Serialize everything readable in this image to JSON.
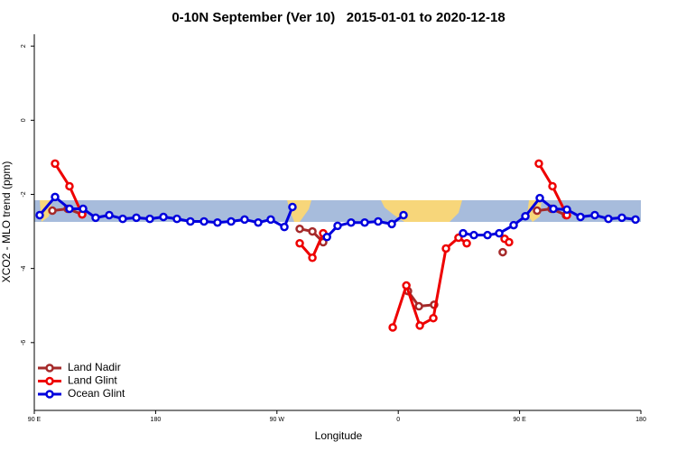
{
  "chart_data": {
    "type": "line",
    "title": "0-10N September (Ver 10)   2015-01-01 to 2020-12-18",
    "xlabel": "Longitude",
    "ylabel": "XCO2 - MLO trend (ppm)",
    "xlim": [
      90,
      540
    ],
    "ylim": [
      -7.83,
      2.32
    ],
    "xticks": [
      {
        "value": 90,
        "label": "90 E"
      },
      180,
      {
        "value": 270,
        "label": "90 W"
      },
      {
        "value": 360,
        "label": "0"
      },
      {
        "value": 450,
        "label": "90 E"
      },
      {
        "value": 540,
        "label": "180"
      }
    ],
    "yticks": [
      2,
      0,
      -2,
      -4,
      -6
    ],
    "legend": "bottom-left",
    "series": [
      {
        "name": "Land Nadir",
        "color": "#a52a2a",
        "x": [
          103.4,
          114.8,
          125.5,
          null,
          286.9,
          296.3,
          304.3,
          null,
          367.2,
          375.3,
          386.6,
          null,
          437.5,
          null,
          463,
          473.7,
          484.4
        ],
        "values": [
          -2.44,
          -2.39,
          -2.54,
          null,
          -2.93,
          -3.0,
          -3.29,
          null,
          -4.61,
          -5.02,
          -4.98,
          null,
          -3.56,
          null,
          -2.44,
          -2.39,
          -2.56
        ]
      },
      {
        "name": "Land Glint",
        "color": "#ee0000",
        "x": [
          105.4,
          116.1,
          125.5,
          null,
          286.9,
          296.3,
          304.3,
          null,
          355.9,
          366,
          376,
          386,
          395.4,
          404.7,
          410.8,
          null,
          438.9,
          null,
          442.2,
          null,
          464.3,
          474.4,
          485.1
        ],
        "values": [
          -1.17,
          -1.78,
          -2.54,
          null,
          -3.32,
          -3.71,
          -3.05,
          null,
          -5.59,
          -4.46,
          -5.54,
          -5.34,
          -3.46,
          -3.17,
          -3.32,
          null,
          -3.2,
          null,
          -3.29,
          null,
          -1.17,
          -1.78,
          -2.56
        ]
      },
      {
        "name": "Ocean Glint",
        "color": "#0000dd",
        "x": [
          94,
          105.4,
          116.1,
          126.2,
          135.5,
          145.6,
          155.6,
          165.7,
          175.7,
          185.8,
          195.8,
          205.8,
          215.9,
          225.9,
          236,
          246,
          256.1,
          265.4,
          275.5,
          281.5,
          null,
          307.1,
          315,
          325,
          335.1,
          345.1,
          355.2,
          363.9,
          null,
          408.1,
          416.1,
          426.2,
          434.9,
          445.6,
          454.3,
          465,
          475.1,
          485.1,
          495.2,
          505.8,
          515.9,
          525.9,
          536
        ],
        "values": [
          -2.56,
          -2.07,
          -2.39,
          -2.39,
          -2.63,
          -2.56,
          -2.66,
          -2.63,
          -2.66,
          -2.61,
          -2.66,
          -2.73,
          -2.73,
          -2.76,
          -2.73,
          -2.68,
          -2.76,
          -2.68,
          -2.88,
          -2.34,
          null,
          -3.15,
          -2.85,
          -2.76,
          -2.76,
          -2.73,
          -2.8,
          -2.56,
          null,
          -3.05,
          -3.1,
          -3.1,
          -3.05,
          -2.83,
          -2.59,
          -2.1,
          -2.39,
          -2.41,
          -2.61,
          -2.56,
          -2.66,
          -2.63,
          -2.68
        ]
      }
    ]
  }
}
